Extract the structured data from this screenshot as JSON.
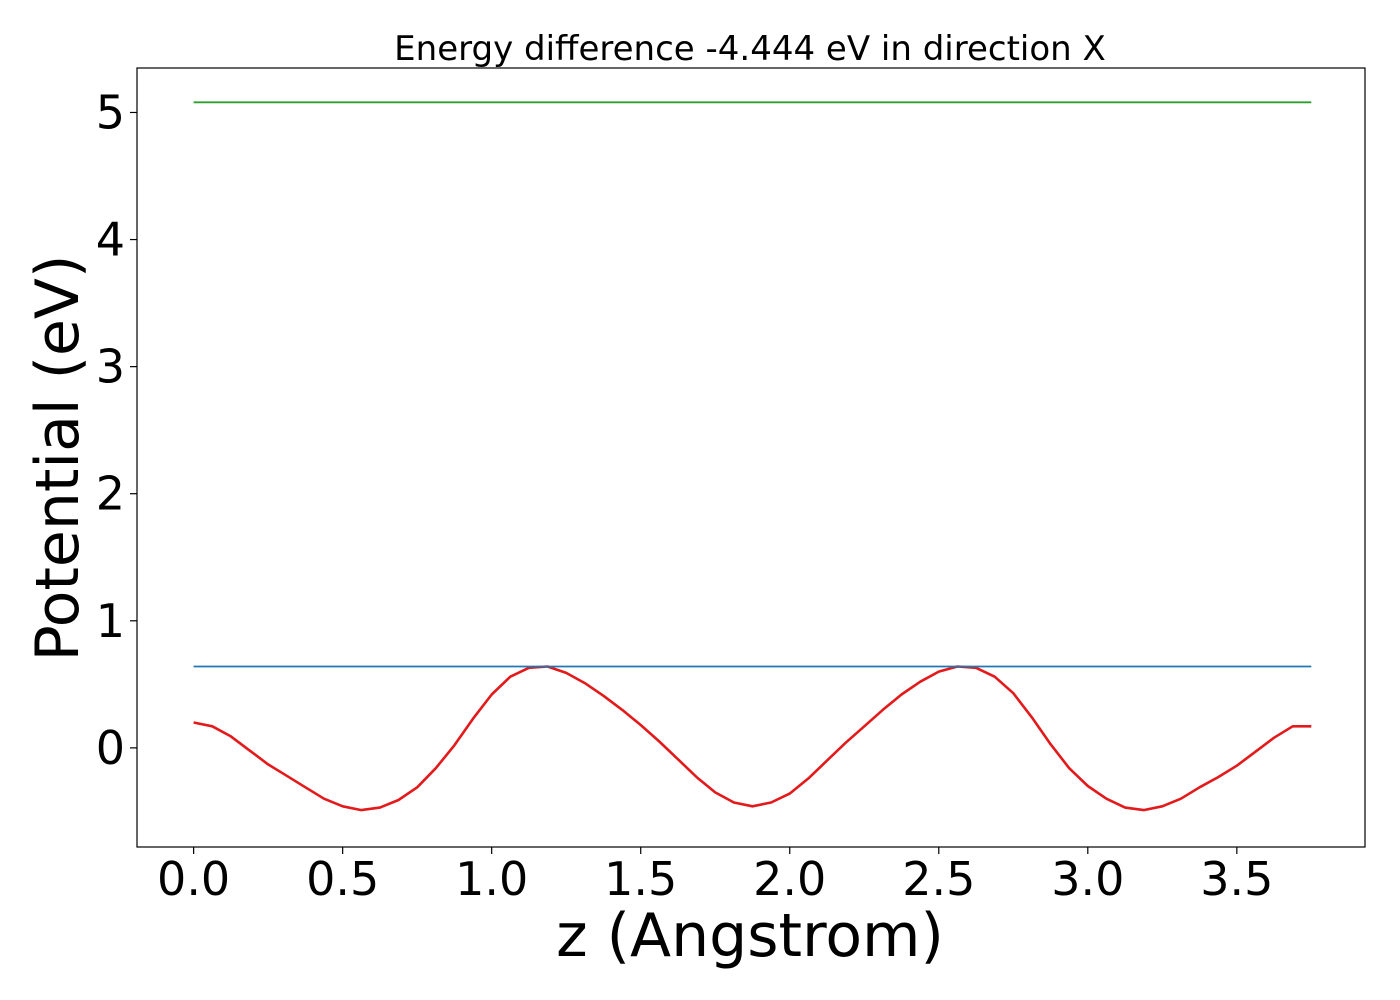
{
  "chart_data": {
    "type": "line",
    "title": "Energy difference -4.444 eV in direction X",
    "xlabel": "z (Angstrom)",
    "ylabel": "Potential (eV)",
    "xlim": [
      -0.19,
      3.93
    ],
    "ylim": [
      -0.78,
      5.35
    ],
    "xticks": [
      0.0,
      0.5,
      1.0,
      1.5,
      2.0,
      2.5,
      3.0,
      3.5
    ],
    "xtick_labels": [
      "0.0",
      "0.5",
      "1.0",
      "1.5",
      "2.0",
      "2.5",
      "3.0",
      "3.5"
    ],
    "yticks": [
      0,
      1,
      2,
      3,
      4,
      5
    ],
    "ytick_labels": [
      "0",
      "1",
      "2",
      "3",
      "4",
      "5"
    ],
    "grid": false,
    "legend": "none",
    "series": [
      {
        "color": "#e31a1c",
        "x": [
          0.0,
          0.0625,
          0.125,
          0.1875,
          0.25,
          0.3125,
          0.375,
          0.4375,
          0.5,
          0.5625,
          0.625,
          0.6875,
          0.75,
          0.8125,
          0.875,
          0.9375,
          1.0,
          1.0625,
          1.125,
          1.1875,
          1.25,
          1.3125,
          1.375,
          1.4375,
          1.5,
          1.5625,
          1.625,
          1.6875,
          1.75,
          1.8125,
          1.875,
          1.9375,
          2.0,
          2.0625,
          2.125,
          2.1875,
          2.25,
          2.3125,
          2.375,
          2.4375,
          2.5,
          2.5625,
          2.625,
          2.6875,
          2.75,
          2.8125,
          2.875,
          2.9375,
          3.0,
          3.0625,
          3.125,
          3.1875,
          3.25,
          3.3125,
          3.375,
          3.4375,
          3.5,
          3.5625,
          3.625,
          3.6875,
          3.75
        ],
        "y": [
          0.2,
          0.17,
          0.09,
          -0.02,
          -0.13,
          -0.22,
          -0.31,
          -0.4,
          -0.46,
          -0.49,
          -0.47,
          -0.41,
          -0.31,
          -0.16,
          0.02,
          0.23,
          0.42,
          0.56,
          0.63,
          0.64,
          0.59,
          0.51,
          0.41,
          0.3,
          0.18,
          0.05,
          -0.09,
          -0.23,
          -0.35,
          -0.43,
          -0.46,
          -0.43,
          -0.36,
          -0.24,
          -0.1,
          0.04,
          0.17,
          0.3,
          0.42,
          0.52,
          0.6,
          0.64,
          0.63,
          0.56,
          0.43,
          0.24,
          0.03,
          -0.16,
          -0.3,
          -0.4,
          -0.47,
          -0.49,
          -0.46,
          -0.4,
          -0.31,
          -0.23,
          -0.14,
          -0.03,
          0.08,
          0.17,
          0.17
        ]
      },
      {
        "color": "#1f77b4",
        "x": [
          0.0,
          3.75
        ],
        "y": [
          0.64,
          0.64
        ]
      },
      {
        "color": "#2ca02c",
        "x": [
          0.0,
          3.75
        ],
        "y": [
          5.08,
          5.08
        ]
      }
    ]
  }
}
